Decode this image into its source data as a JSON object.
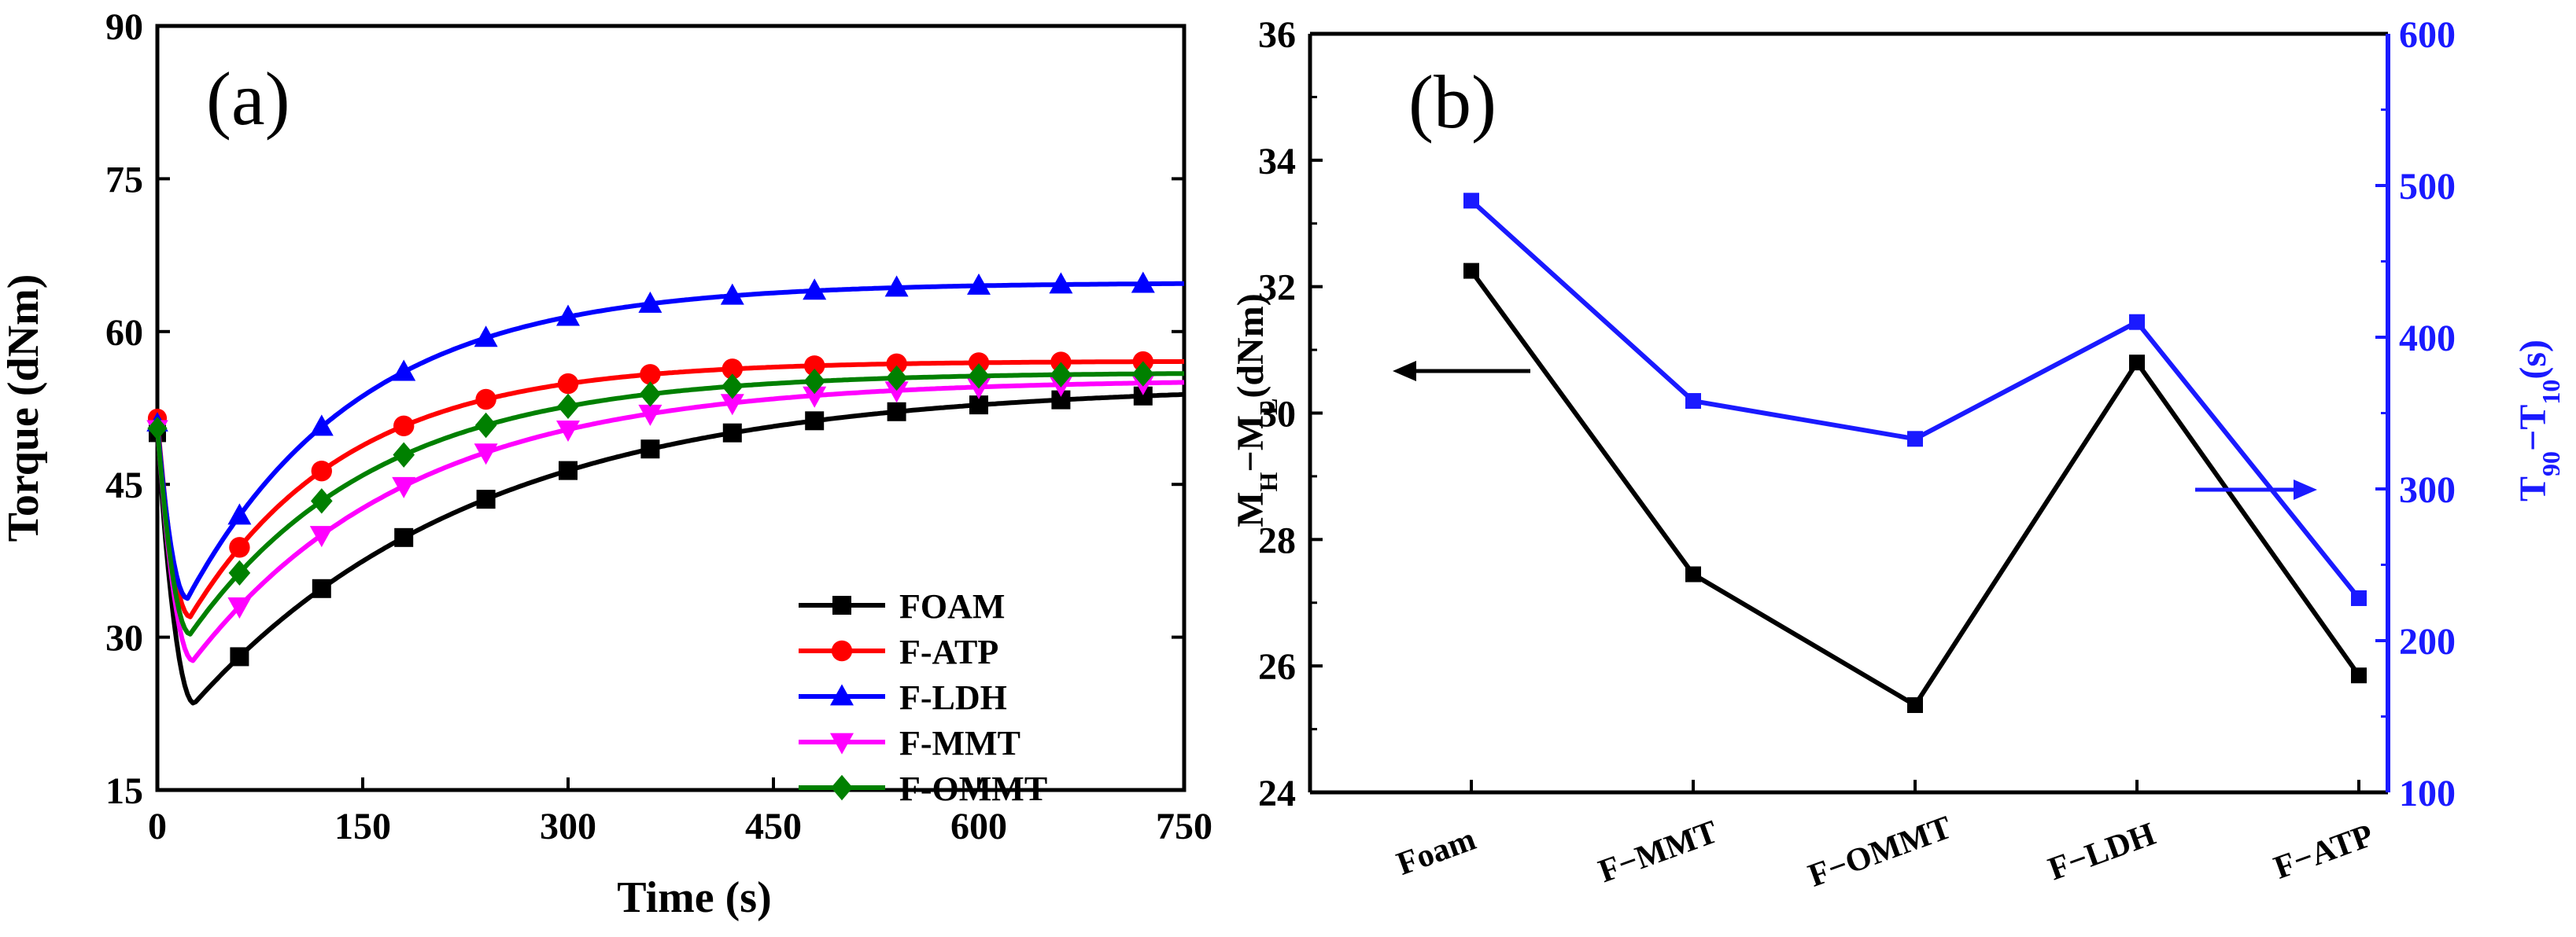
{
  "chart_data": [
    {
      "type": "line",
      "panel_label": "(a)",
      "title": "",
      "xlabel": "Time (s)",
      "ylabel": "Torque (dNm)",
      "xlim": [
        0,
        750
      ],
      "ylim": [
        15,
        90
      ],
      "xticks": [
        "0",
        "150",
        "300",
        "450",
        "600",
        "750"
      ],
      "yticks": [
        "15",
        "30",
        "45",
        "60",
        "75",
        "90"
      ],
      "legend_position": "bottom-right",
      "marker_x": [
        60,
        120,
        180,
        240,
        300,
        360,
        420,
        480,
        540,
        600,
        660,
        720
      ],
      "series": [
        {
          "name": "FOAM",
          "color": "#000000",
          "marker": "square",
          "start": 50,
          "min_t": 27,
          "min_v": 23.5,
          "end": 54.8,
          "k": 0.0048,
          "marker_offset": 0
        },
        {
          "name": "F-ATP",
          "color": "#ff0000",
          "marker": "circle",
          "start": 51.5,
          "min_t": 24,
          "min_v": 32.0,
          "end": 57.1,
          "k": 0.0088,
          "marker_offset": 0
        },
        {
          "name": "F-LDH",
          "color": "#0000ff",
          "marker": "triangle-up",
          "start": 51.0,
          "min_t": 22,
          "min_v": 33.8,
          "end": 64.8,
          "k": 0.008,
          "marker_offset": 0
        },
        {
          "name": "F-MMT",
          "color": "#ff00ff",
          "marker": "triangle-down",
          "start": 50.5,
          "min_t": 26,
          "min_v": 27.7,
          "end": 55.3,
          "k": 0.0063,
          "marker_offset": 0
        },
        {
          "name": "F-OMMT",
          "color": "#008000",
          "marker": "diamond",
          "start": 50.5,
          "min_t": 24,
          "min_v": 30.3,
          "end": 56.0,
          "k": 0.0074,
          "marker_offset": 0
        }
      ]
    },
    {
      "type": "line",
      "panel_label": "(b)",
      "title": "",
      "categories": [
        "Foam",
        "F−MMT",
        "F−OMMT",
        "F−LDH",
        "F−ATP"
      ],
      "ylabel_left": "MH−ML(dNm)",
      "ylabel_right": "T90−T10(s)",
      "ylim_left": [
        24,
        36
      ],
      "ylim_right": [
        100,
        600
      ],
      "yticks_left": [
        "24",
        "26",
        "28",
        "30",
        "32",
        "34",
        "36"
      ],
      "yticks_right": [
        "100",
        "200",
        "300",
        "400",
        "500",
        "600"
      ],
      "series": [
        {
          "name": "MH−ML",
          "axis": "left",
          "color": "#000000",
          "marker": "square",
          "values": [
            32.25,
            27.45,
            25.38,
            30.8,
            25.85
          ]
        },
        {
          "name": "T90−T10",
          "axis": "right",
          "color": "#1a1aff",
          "marker": "square",
          "values": [
            490,
            358,
            333,
            410,
            228
          ]
        }
      ],
      "annotations": [
        {
          "type": "arrow",
          "direction": "left",
          "points_to": "left axis",
          "color": "#000000"
        },
        {
          "type": "arrow",
          "direction": "right",
          "points_to": "right axis",
          "color": "#1a1aff"
        }
      ]
    }
  ]
}
